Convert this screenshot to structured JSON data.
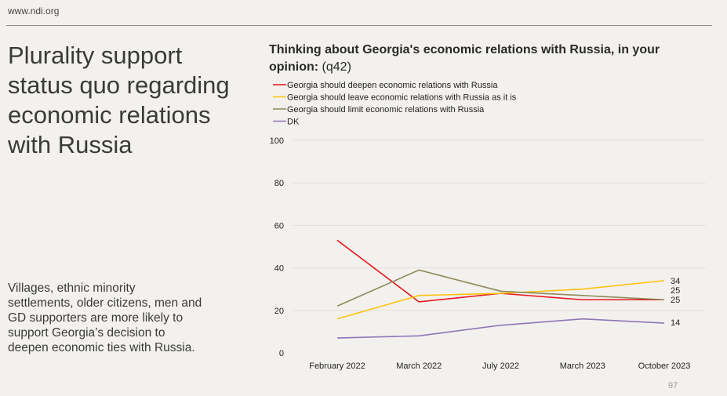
{
  "site_url": "www.ndi.org",
  "headline": "Plurality support status quo regarding economic relations with Russia",
  "body_text": "Villages, ethnic minority settlements, older citizens, men and GD supporters are more likely to support Georgia’s decision to deepen economic ties with Russia.",
  "page_number": "97",
  "chart_data": {
    "type": "line",
    "title": "Thinking about Georgia's economic relations with Russia, in your opinion:",
    "title_suffix": "(q42)",
    "categories": [
      "February 2022",
      "March 2022",
      "July 2022",
      "March 2023",
      "October 2023"
    ],
    "ylim": [
      0,
      100
    ],
    "yticks": [
      0,
      20,
      40,
      60,
      80,
      100
    ],
    "grid": "horizontal",
    "legend_position": "top-left",
    "series": [
      {
        "name": "Georgia should deepen economic relations with Russia",
        "color": "#e8141b",
        "values": [
          53,
          24,
          28,
          25,
          25
        ],
        "end_label": "25"
      },
      {
        "name": "Georgia should leave economic relations with Russia as it is",
        "color": "#ffc20e",
        "values": [
          16,
          27,
          28,
          30,
          34
        ],
        "end_label": "34"
      },
      {
        "name": "Georgia should limit economic relations with Russia",
        "color": "#8d8a5a",
        "values": [
          22,
          39,
          29,
          27,
          25
        ],
        "end_label": "25"
      },
      {
        "name": "DK",
        "color": "#8e76b7",
        "values": [
          7,
          8,
          13,
          16,
          14
        ],
        "end_label": "14"
      }
    ]
  }
}
